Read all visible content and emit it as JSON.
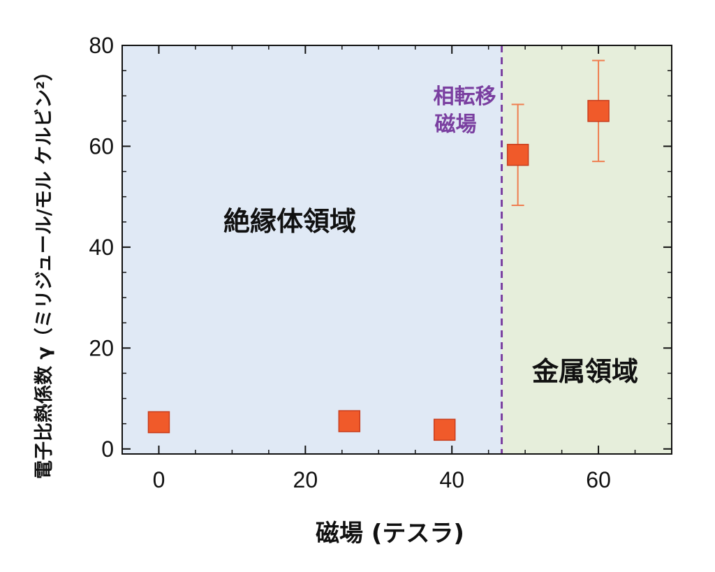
{
  "chart_data": {
    "type": "scatter",
    "xlabel": "磁場 (テスラ)",
    "ylabel": "電子比熱係数 γ（ミリジュール/モル ケルビン²）",
    "xlim": [
      -5,
      70
    ],
    "ylim": [
      -1,
      80
    ],
    "xticks": [
      0,
      20,
      40,
      60
    ],
    "yticks": [
      0,
      20,
      40,
      60,
      80
    ],
    "tick_labels_x": [
      "0",
      "20",
      "40",
      "60"
    ],
    "tick_labels_y": [
      "0",
      "20",
      "40",
      "60",
      "80"
    ],
    "grid": false,
    "points": [
      {
        "x": 0,
        "y": 5.3
      },
      {
        "x": 26,
        "y": 5.5
      },
      {
        "x": 39,
        "y": 3.8
      },
      {
        "x": 49,
        "y": 58.3,
        "err": 10
      },
      {
        "x": 60,
        "y": 67,
        "err": 10
      }
    ],
    "transition_field": 46.8,
    "regions": [
      {
        "label": "絶縁体領域",
        "x_range": [
          -5,
          46.8
        ],
        "color": "#e0e9f5"
      },
      {
        "label": "金属領域",
        "x_range": [
          46.8,
          70
        ],
        "color": "#e6eedb"
      }
    ],
    "annotations": [
      {
        "text": "相転移",
        "line": 1
      },
      {
        "text": "磁場",
        "line": 2
      }
    ],
    "colors": {
      "marker_fill": "#f05a2a",
      "marker_edge": "#c83d1d",
      "errorbar": "#ef7d4f",
      "transition_line": "#7a3fa0",
      "axis": "#111111"
    }
  }
}
